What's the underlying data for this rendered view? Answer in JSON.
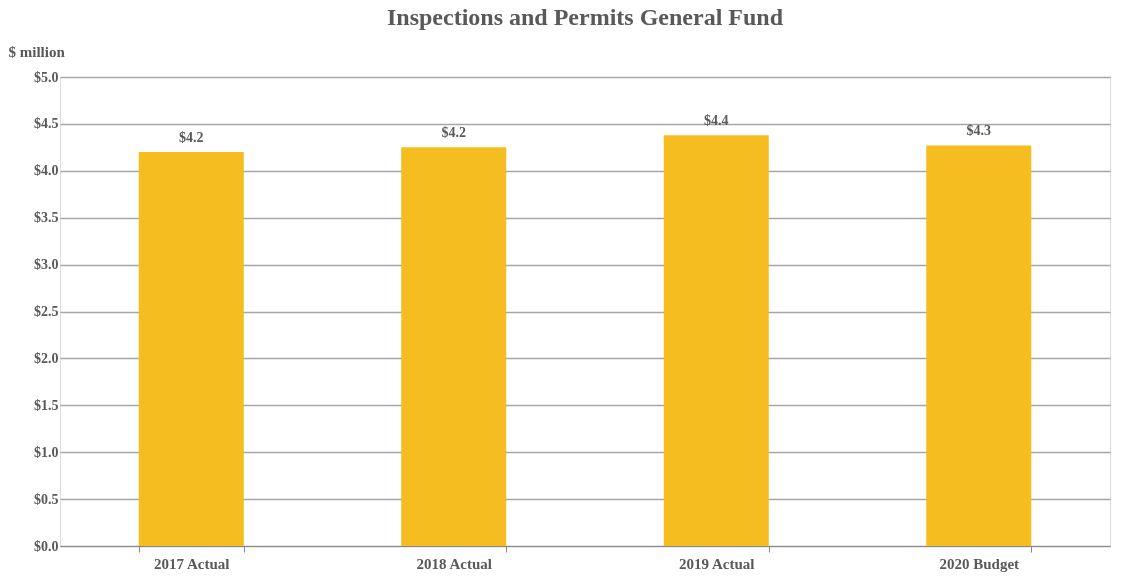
{
  "chart_data": {
    "type": "bar",
    "title": "Inspections and Permits General Fund",
    "ylabel": "$ million",
    "categories": [
      "2017 Actual",
      "2018 Actual",
      "2019 Actual",
      "2020 Budget"
    ],
    "values": [
      4.2,
      4.25,
      4.38,
      4.27
    ],
    "value_labels": [
      "$4.2",
      "$4.2",
      "$4.4",
      "$4.3"
    ],
    "color": "#f5bd1f",
    "ylim": [
      0,
      5
    ],
    "yticks": [
      {
        "value": 0,
        "label": "$0.0"
      },
      {
        "value": 0.5,
        "label": "$0.5"
      },
      {
        "value": 1,
        "label": "$1.0"
      },
      {
        "value": 1.5,
        "label": "$1.5"
      },
      {
        "value": 2,
        "label": "$2.0"
      },
      {
        "value": 2.5,
        "label": "$2.5"
      },
      {
        "value": 3,
        "label": "$3.0"
      },
      {
        "value": 3.5,
        "label": "$3.5"
      },
      {
        "value": 4,
        "label": "$4.0"
      },
      {
        "value": 4.5,
        "label": "$4.5"
      },
      {
        "value": 5,
        "label": "$5.0"
      }
    ],
    "grid": "y"
  }
}
